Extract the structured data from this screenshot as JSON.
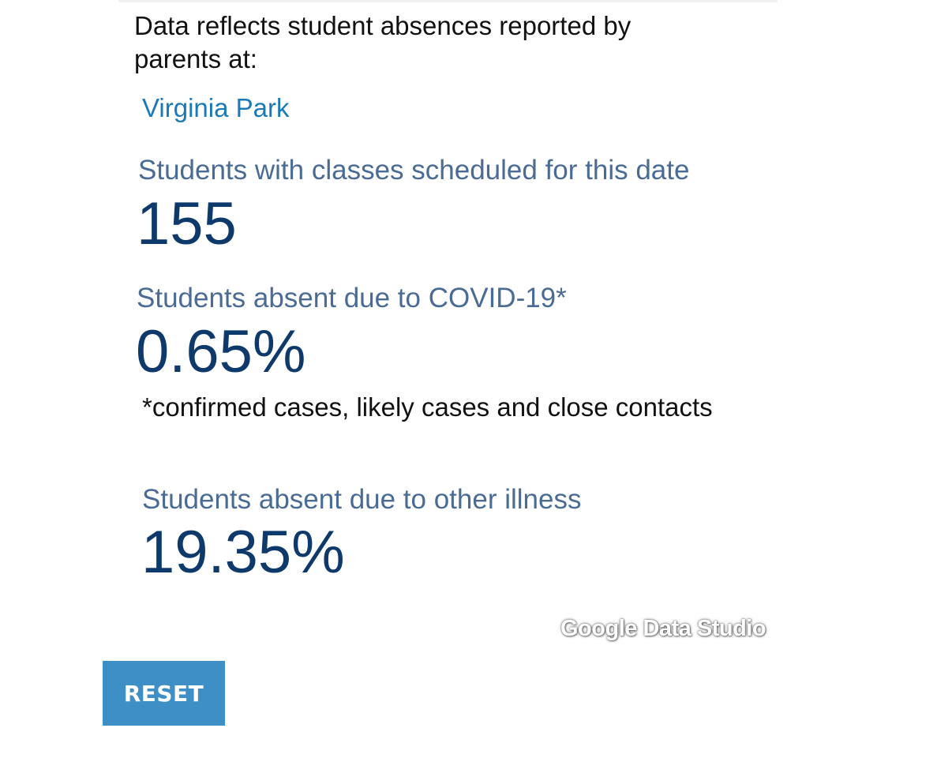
{
  "intro_text": "Data reflects student absences reported by parents at:",
  "school": {
    "name": "Virginia Park"
  },
  "metrics": {
    "scheduled": {
      "label": "Students with classes scheduled for this date",
      "value": "155"
    },
    "covid": {
      "label": "Students absent due to COVID-19*",
      "value": "0.65%"
    },
    "other_illness": {
      "label": "Students absent due to other illness",
      "value": "19.35%"
    }
  },
  "footnote": "*confirmed cases, likely cases and close contacts",
  "watermark": "Google Data Studio",
  "reset_button": {
    "label": "RESET"
  },
  "colors": {
    "link": "#1a7ab8",
    "label": "#4a6b94",
    "value": "#0e3a6b",
    "button": "#3d8fc6"
  }
}
